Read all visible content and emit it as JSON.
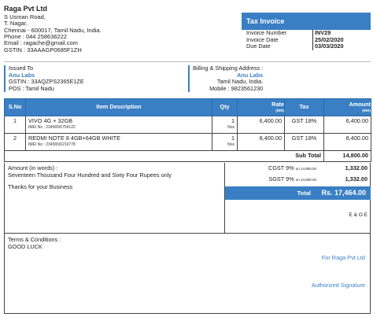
{
  "company": {
    "name": "Raga Pvt Ltd",
    "address_1": "S Usman Road,",
    "address_2": "T. Nagar,",
    "address_3": "Chennai - 600017, Tamil Nadu, India.",
    "phone": "Phone : 044 258636222",
    "email": "Email : ragache@gmail.com",
    "gstin": "GSTIN : 33AAAGP0685F1ZH"
  },
  "invoice": {
    "title": "Tax Invoice",
    "number_label": "Invoice Number",
    "number": "INV29",
    "date_label": "Invoice Date",
    "date": "25/02/2020",
    "due_label": "Due Date",
    "due": "03/03/2020"
  },
  "issued_to": {
    "label": "Issued To",
    "name": "Anu Labs",
    "gstin": "GSTIN  : 33AQZPS2365E1ZE",
    "pos": "POS : Tamil Nadu"
  },
  "billing": {
    "label": "Billing & Shipping Address :",
    "name": "Anu Labs",
    "state": "Tamil Nadu, India.",
    "mobile": "Mobile : 9823561230"
  },
  "table": {
    "headers": {
      "sno": "S.No",
      "desc": "Item Description",
      "qty": "Qty",
      "rate": "Rate",
      "rate_unit": "(INR)",
      "tax": "Tax",
      "amount": "Amount",
      "amount_unit": "(INR)"
    },
    "rows": [
      {
        "sno": "1",
        "desc": "VIVO 4G + 32GB",
        "imei": "IMEI No : 234565/6754122",
        "qty": "1",
        "qty_unit": "Nos",
        "rate": "6,400.00",
        "tax": "GST 18%",
        "amount": "6,400.00"
      },
      {
        "sno": "2",
        "desc": "REDMI NOTE 8 4GB+64GB WHITE",
        "imei": "IMEI No : 234565/6216778",
        "qty": "1",
        "qty_unit": "Nos",
        "rate": "8,400.00",
        "tax": "GST 18%",
        "amount": "8,400.00"
      }
    ],
    "subtotal_label": "Sub Total",
    "subtotal": "14,800.00"
  },
  "amount": {
    "words_label": "Amount (in words) :",
    "words": "Seventeen Thousand Four Hundred and Sixty Four Rupees only",
    "thanks": "Thanks for your Business",
    "cgst_label": "CGST 9%",
    "cgst_on": "on 14,800.00",
    "cgst": "1,332.00",
    "sgst_label": "SGST 9%",
    "sgst_on": "on 14,800.00",
    "sgst": "1,332.00",
    "total_label": "Total",
    "total": "Rs. 17,464.00",
    "eoe": "E & O E"
  },
  "footer": {
    "terms_label": "Terms & Conditions :",
    "terms": "GOOD LUCK",
    "for": "For Raga Pvt Ltd",
    "signature": "Authorized Signature"
  },
  "colors": {
    "accent": "#3a7fc4"
  }
}
